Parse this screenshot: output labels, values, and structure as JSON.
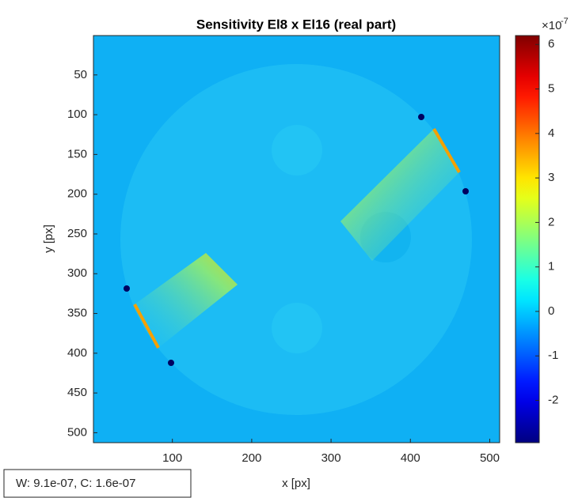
{
  "chart_data": {
    "type": "image",
    "title": "Sensitivity El8 x El16 (real part)",
    "xlabel": "x [px]",
    "ylabel": "y [px]",
    "xlim": [
      0.5,
      512.5
    ],
    "ylim": [
      0.5,
      512.5
    ],
    "xticks": [
      100,
      200,
      300,
      400,
      500
    ],
    "yticks": [
      50,
      100,
      150,
      200,
      250,
      300,
      350,
      400,
      450,
      500
    ],
    "colorbar": {
      "colormap": "jet",
      "lim": [
        -2.95,
        6.2
      ],
      "ticks": [
        -2,
        -1,
        0,
        1,
        2,
        3,
        4,
        5,
        6
      ],
      "exponent_base": "×10",
      "exponent": "-7"
    },
    "datatip": "W: 9.1e-07, C: 1.6e-07"
  }
}
